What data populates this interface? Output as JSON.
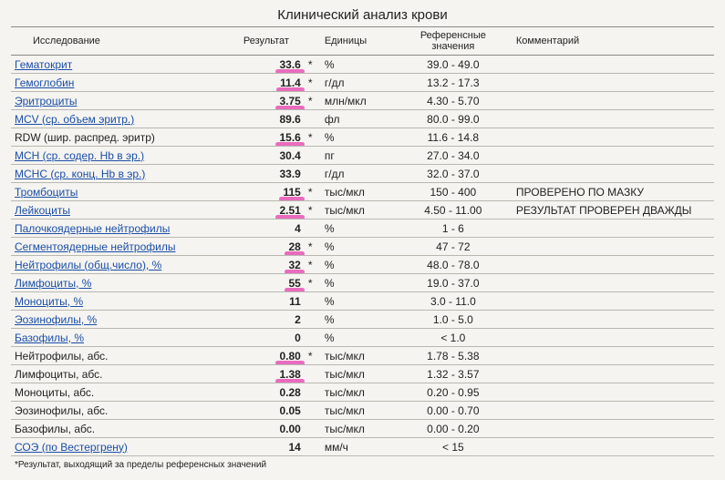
{
  "title": "Клинический анализ крови",
  "headers": {
    "test": "Исследование",
    "result": "Результат",
    "units": "Единицы",
    "reference": "Референсные значения",
    "comment": "Комментарий"
  },
  "footnote": "*Результат, выходящий за пределы референсных значений",
  "rows": [
    {
      "name": "Гематокрит",
      "link": true,
      "value": "33.6",
      "flag": "*",
      "unit": "%",
      "ref": "39.0 - 49.0",
      "comment": "",
      "highlight": true
    },
    {
      "name": "Гемоглобин",
      "link": true,
      "value": "11.4",
      "flag": "*",
      "unit": "г/дл",
      "ref": "13.2 - 17.3",
      "comment": "",
      "highlight": true
    },
    {
      "name": "Эритроциты",
      "link": true,
      "value": "3.75",
      "flag": "*",
      "unit": "млн/мкл",
      "ref": "4.30 - 5.70",
      "comment": "",
      "highlight": true
    },
    {
      "name": "MCV (ср. объем эритр.)",
      "link": true,
      "value": "89.6",
      "flag": "",
      "unit": "фл",
      "ref": "80.0 - 99.0",
      "comment": "",
      "highlight": false
    },
    {
      "name": "RDW (шир. распред. эритр)",
      "link": false,
      "value": "15.6",
      "flag": "*",
      "unit": "%",
      "ref": "11.6 - 14.8",
      "comment": "",
      "highlight": true
    },
    {
      "name": "MCH (ср. содер. Hb в эр.)",
      "link": true,
      "value": "30.4",
      "flag": "",
      "unit": "пг",
      "ref": "27.0 - 34.0",
      "comment": "",
      "highlight": false
    },
    {
      "name": "MCHC (ср. конц. Hb в эр.)",
      "link": true,
      "value": "33.9",
      "flag": "",
      "unit": "г/дл",
      "ref": "32.0 - 37.0",
      "comment": "",
      "highlight": false
    },
    {
      "name": "Тромбоциты",
      "link": true,
      "value": "115",
      "flag": "*",
      "unit": "тыс/мкл",
      "ref": "150 - 400",
      "comment": "ПРОВЕРЕНО ПО МАЗКУ",
      "highlight": true
    },
    {
      "name": "Лейкоциты",
      "link": true,
      "value": "2.51",
      "flag": "*",
      "unit": "тыс/мкл",
      "ref": "4.50 - 11.00",
      "comment": "РЕЗУЛЬТАТ ПРОВЕРЕН ДВАЖДЫ",
      "highlight": true
    },
    {
      "name": "Палочкоядерные нейтрофилы",
      "link": true,
      "value": "4",
      "flag": "",
      "unit": "%",
      "ref": "1 - 6",
      "comment": "",
      "highlight": false
    },
    {
      "name": "Сегментоядерные нейтрофилы",
      "link": true,
      "value": "28",
      "flag": "*",
      "unit": "%",
      "ref": "47 - 72",
      "comment": "",
      "highlight": true
    },
    {
      "name": "Нейтрофилы (общ.число), %",
      "link": true,
      "value": "32",
      "flag": "*",
      "unit": "%",
      "ref": "48.0 - 78.0",
      "comment": "",
      "highlight": true
    },
    {
      "name": "Лимфоциты, %",
      "link": true,
      "value": "55",
      "flag": "*",
      "unit": "%",
      "ref": "19.0 - 37.0",
      "comment": "",
      "highlight": true
    },
    {
      "name": "Моноциты, %",
      "link": true,
      "value": "11",
      "flag": "",
      "unit": "%",
      "ref": "3.0 - 11.0",
      "comment": "",
      "highlight": false
    },
    {
      "name": "Эозинофилы, %",
      "link": true,
      "value": "2",
      "flag": "",
      "unit": "%",
      "ref": "1.0 - 5.0",
      "comment": "",
      "highlight": false
    },
    {
      "name": "Базофилы, %",
      "link": true,
      "value": "0",
      "flag": "",
      "unit": "%",
      "ref": "< 1.0",
      "comment": "",
      "highlight": false
    },
    {
      "name": "Нейтрофилы, абс.",
      "link": false,
      "value": "0.80",
      "flag": "*",
      "unit": "тыс/мкл",
      "ref": "1.78 - 5.38",
      "comment": "",
      "highlight": true
    },
    {
      "name": "Лимфоциты, абс.",
      "link": false,
      "value": "1.38",
      "flag": "",
      "unit": "тыс/мкл",
      "ref": "1.32 - 3.57",
      "comment": "",
      "highlight": true
    },
    {
      "name": "Моноциты, абс.",
      "link": false,
      "value": "0.28",
      "flag": "",
      "unit": "тыс/мкл",
      "ref": "0.20 - 0.95",
      "comment": "",
      "highlight": false
    },
    {
      "name": "Эозинофилы, абс.",
      "link": false,
      "value": "0.05",
      "flag": "",
      "unit": "тыс/мкл",
      "ref": "0.00 - 0.70",
      "comment": "",
      "highlight": false
    },
    {
      "name": "Базофилы, абс.",
      "link": false,
      "value": "0.00",
      "flag": "",
      "unit": "тыс/мкл",
      "ref": "0.00 - 0.20",
      "comment": "",
      "highlight": false
    },
    {
      "name": "СОЭ (по Вестергрену)",
      "link": true,
      "value": "14",
      "flag": "",
      "unit": "мм/ч",
      "ref": "< 15",
      "comment": "",
      "highlight": false
    }
  ]
}
